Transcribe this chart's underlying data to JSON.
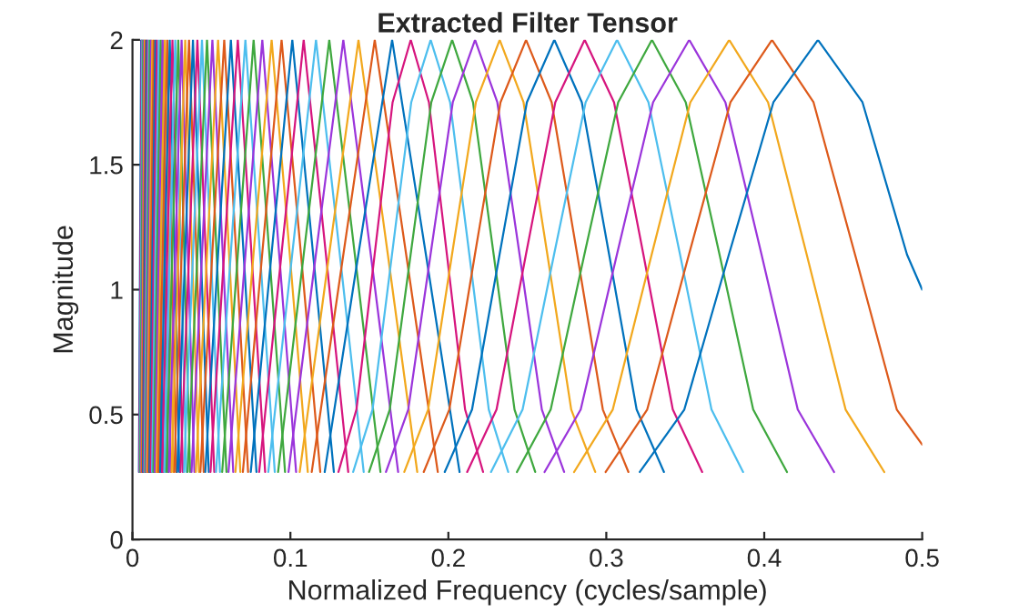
{
  "chart_data": {
    "type": "line",
    "title": "Extracted Filter Tensor",
    "xlabel": "Normalized Frequency (cycles/sample)",
    "ylabel": "Magnitude",
    "xlim": [
      0,
      0.5
    ],
    "xticks": [
      0,
      0.1,
      0.2,
      0.3,
      0.4,
      0.5
    ],
    "ylim": [
      0,
      2
    ],
    "yticks": [
      0,
      0.5,
      1,
      1.5,
      2
    ],
    "grid": false,
    "marker": "none",
    "line_style": "solid",
    "series": [
      {
        "color": "#0072BD",
        "x": [
          0.0041,
          0.0048,
          0.0055,
          0.0062,
          0.0069
        ],
        "values": [
          0.27,
          1.14,
          2,
          1.14,
          0.27
        ]
      },
      {
        "color": "#D6157E",
        "x": [
          0.0044,
          0.0051,
          0.0059,
          0.0067,
          0.0074
        ],
        "values": [
          0.27,
          1.14,
          2,
          1.14,
          0.27
        ]
      },
      {
        "color": "#4DBEEE",
        "x": [
          0.0047,
          0.0055,
          0.0063,
          0.0071,
          0.0079
        ],
        "values": [
          0.27,
          1.14,
          2,
          1.14,
          0.27
        ]
      },
      {
        "color": "#3FA83F",
        "x": [
          0.005,
          0.0059,
          0.0068,
          0.0077,
          0.0086
        ],
        "values": [
          0.27,
          1.14,
          2,
          1.14,
          0.27
        ]
      },
      {
        "color": "#9B35DB",
        "x": [
          0.0054,
          0.0064,
          0.0073,
          0.0082,
          0.0092
        ],
        "values": [
          0.27,
          1.14,
          2,
          1.14,
          0.27
        ]
      },
      {
        "color": "#F2A81D",
        "x": [
          0.0058,
          0.0068,
          0.0078,
          0.0088,
          0.0098
        ],
        "values": [
          0.27,
          1.14,
          2,
          1.14,
          0.27
        ]
      },
      {
        "color": "#DD5A1B",
        "x": [
          0.0061,
          0.0072,
          0.0083,
          0.0094,
          0.0105
        ],
        "values": [
          0.27,
          1.14,
          2,
          1.14,
          0.27
        ]
      },
      {
        "color": "#0072BD",
        "x": [
          0.0066,
          0.0077,
          0.0089,
          0.0101,
          0.0112
        ],
        "values": [
          0.27,
          1.14,
          2,
          1.14,
          0.27
        ]
      },
      {
        "color": "#D6157E",
        "x": [
          0.0071,
          0.0084,
          0.0096,
          0.0108,
          0.0121
        ],
        "values": [
          0.27,
          1.14,
          2,
          1.14,
          0.27
        ]
      },
      {
        "color": "#4DBEEE",
        "x": [
          0.0076,
          0.009,
          0.0103,
          0.0116,
          0.013
        ],
        "values": [
          0.27,
          1.14,
          2,
          1.14,
          0.27
        ]
      },
      {
        "color": "#3FA83F",
        "x": [
          0.0081,
          0.0096,
          0.011,
          0.0124,
          0.0139
        ],
        "values": [
          0.27,
          1.14,
          2,
          1.14,
          0.27
        ]
      },
      {
        "color": "#9B35DB",
        "x": [
          0.0087,
          0.0103,
          0.0118,
          0.0133,
          0.0149
        ],
        "values": [
          0.27,
          1.14,
          2,
          1.14,
          0.27
        ]
      },
      {
        "color": "#F2A81D",
        "x": [
          0.0093,
          0.011,
          0.0126,
          0.0142,
          0.0159
        ],
        "values": [
          0.27,
          1.14,
          2,
          1.14,
          0.27
        ]
      },
      {
        "color": "#DD5A1B",
        "x": [
          0.01,
          0.0117,
          0.0135,
          0.0153,
          0.017
        ],
        "values": [
          0.27,
          1.14,
          2,
          1.14,
          0.27
        ]
      },
      {
        "color": "#0072BD",
        "x": [
          0.0107,
          0.0126,
          0.0145,
          0.0164,
          0.0183
        ],
        "values": [
          0.27,
          1.14,
          2,
          1.14,
          0.27
        ]
      },
      {
        "color": "#D6157E",
        "x": [
          0.0115,
          0.0135,
          0.0155,
          0.0175,
          0.0195
        ],
        "values": [
          0.27,
          1.14,
          2,
          1.14,
          0.27
        ]
      },
      {
        "color": "#4DBEEE",
        "x": [
          0.0124,
          0.0145,
          0.0167,
          0.0189,
          0.021
        ],
        "values": [
          0.27,
          1.14,
          2,
          1.14,
          0.27
        ]
      },
      {
        "color": "#3FA83F",
        "x": [
          0.0132,
          0.0156,
          0.0179,
          0.0202,
          0.0226
        ],
        "values": [
          0.27,
          1.14,
          2,
          1.14,
          0.27
        ]
      },
      {
        "color": "#9B35DB",
        "x": [
          0.0141,
          0.0166,
          0.0191,
          0.0216,
          0.0241
        ],
        "values": [
          0.27,
          1.14,
          2,
          1.14,
          0.27
        ]
      },
      {
        "color": "#F2A81D",
        "x": [
          0.0152,
          0.0178,
          0.0205,
          0.0232,
          0.0258
        ],
        "values": [
          0.27,
          1.14,
          2,
          1.14,
          0.27
        ]
      },
      {
        "color": "#DD5A1B",
        "x": [
          0.0163,
          0.0191,
          0.022,
          0.0249,
          0.0277
        ],
        "values": [
          0.27,
          1.14,
          2,
          1.14,
          0.27
        ]
      },
      {
        "color": "#0072BD",
        "x": [
          0.0175,
          0.0205,
          0.0236,
          0.0267,
          0.0297
        ],
        "values": [
          0.27,
          1.14,
          2,
          1.14,
          0.27
        ]
      },
      {
        "color": "#D6157E",
        "x": [
          0.0187,
          0.022,
          0.0253,
          0.0286,
          0.0319
        ],
        "values": [
          0.27,
          1.14,
          2,
          1.14,
          0.27
        ]
      },
      {
        "color": "#4DBEEE",
        "x": [
          0.0201,
          0.0236,
          0.0271,
          0.0306,
          0.0341
        ],
        "values": [
          0.27,
          1.14,
          2,
          1.14,
          0.27
        ]
      },
      {
        "color": "#3FA83F",
        "x": [
          0.0215,
          0.0252,
          0.029,
          0.0328,
          0.0365
        ],
        "values": [
          0.27,
          1.14,
          2,
          1.14,
          0.27
        ]
      },
      {
        "color": "#9B35DB",
        "x": [
          0.023,
          0.0271,
          0.0311,
          0.0351,
          0.0392
        ],
        "values": [
          0.27,
          1.14,
          2,
          1.14,
          0.27
        ]
      },
      {
        "color": "#F2A81D",
        "x": [
          0.0247,
          0.0291,
          0.0334,
          0.0377,
          0.0421
        ],
        "values": [
          0.27,
          1.14,
          2,
          1.14,
          0.27
        ]
      },
      {
        "color": "#DD5A1B",
        "x": [
          0.0265,
          0.0311,
          0.0358,
          0.0405,
          0.0451
        ],
        "values": [
          0.27,
          1.14,
          2,
          1.14,
          0.27
        ]
      },
      {
        "color": "#0072BD",
        "x": [
          0.0283,
          0.0333,
          0.0383,
          0.0433,
          0.0483
        ],
        "values": [
          0.27,
          1.14,
          2,
          1.14,
          0.27
        ]
      },
      {
        "color": "#D6157E",
        "x": [
          0.0304,
          0.0358,
          0.0411,
          0.0464,
          0.0518
        ],
        "values": [
          0.27,
          1.14,
          2,
          1.14,
          0.27
        ]
      },
      {
        "color": "#4DBEEE",
        "x": [
          0.0326,
          0.0383,
          0.044,
          0.0497,
          0.0554
        ],
        "values": [
          0.27,
          1.14,
          2,
          1.14,
          0.27
        ]
      },
      {
        "color": "#3FA83F",
        "x": [
          0.0349,
          0.0411,
          0.0472,
          0.0533,
          0.0595
        ],
        "values": [
          0.27,
          1.14,
          2,
          1.14,
          0.27
        ]
      },
      {
        "color": "#9B35DB",
        "x": [
          0.0374,
          0.044,
          0.0506,
          0.0572,
          0.0638
        ],
        "values": [
          0.27,
          1.14,
          2,
          1.14,
          0.27
        ]
      },
      {
        "color": "#F2A81D",
        "x": [
          0.0401,
          0.0472,
          0.0542,
          0.0612,
          0.0683
        ],
        "values": [
          0.27,
          1.14,
          2,
          1.14,
          0.27
        ]
      },
      {
        "color": "#DD5A1B",
        "x": [
          0.043,
          0.0505,
          0.0581,
          0.0657,
          0.0732
        ],
        "values": [
          0.27,
          1.14,
          2,
          1.14,
          0.27
        ]
      },
      {
        "color": "#0072BD",
        "x": [
          0.0461,
          0.0542,
          0.0623,
          0.0704,
          0.0785
        ],
        "values": [
          0.27,
          1.14,
          2,
          1.14,
          0.27
        ]
      },
      {
        "color": "#D6157E",
        "x": [
          0.0494,
          0.058,
          0.0667,
          0.0754,
          0.084
        ],
        "values": [
          0.27,
          1.14,
          2,
          1.14,
          0.27
        ]
      },
      {
        "color": "#4DBEEE",
        "x": [
          0.0529,
          0.0622,
          0.0715,
          0.0808,
          0.0901
        ],
        "values": [
          0.27,
          1.14,
          2,
          1.14,
          0.27
        ]
      },
      {
        "color": "#3FA83F",
        "x": [
          0.0568,
          0.0667,
          0.0767,
          0.0867,
          0.0966
        ],
        "values": [
          0.27,
          1.14,
          2,
          1.14,
          0.27
        ]
      },
      {
        "color": "#9B35DB",
        "x": [
          0.0608,
          0.0715,
          0.0822,
          0.0929,
          0.1036
        ],
        "values": [
          0.27,
          1.14,
          2,
          1.14,
          0.27
        ]
      },
      {
        "color": "#F2A81D",
        "x": [
          0.0652,
          0.0766,
          0.0881,
          0.0996,
          0.111
        ],
        "values": [
          0.27,
          1.14,
          2,
          1.14,
          0.27
        ]
      },
      {
        "color": "#DD5A1B",
        "x": [
          0.0699,
          0.0821,
          0.0944,
          0.1067,
          0.1189
        ],
        "values": [
          0.27,
          1.14,
          2,
          1.14,
          0.27
        ]
      },
      {
        "color": "#0072BD",
        "x": [
          0.0749,
          0.088,
          0.1012,
          0.1144,
          0.1275
        ],
        "values": [
          0.27,
          1.14,
          2,
          1.14,
          0.27
        ]
      },
      {
        "color": "#D6157E",
        "x": [
          0.0802,
          0.0943,
          0.1084,
          0.1225,
          0.1366
        ],
        "values": [
          0.27,
          1.14,
          2,
          1.14,
          0.27
        ]
      },
      {
        "color": "#4DBEEE",
        "x": [
          0.086,
          0.1011,
          0.1162,
          0.1313,
          0.1464
        ],
        "values": [
          0.27,
          1.14,
          2,
          1.14,
          0.27
        ]
      },
      {
        "color": "#3FA83F",
        "x": [
          0.0922,
          0.1084,
          0.1246,
          0.1408,
          0.157
        ],
        "values": [
          0.27,
          1.14,
          2,
          1.14,
          0.27
        ]
      },
      {
        "color": "#9B35DB",
        "x": [
          0.0988,
          0.1161,
          0.1335,
          0.1509,
          0.1682
        ],
        "values": [
          0.27,
          1.14,
          2,
          1.14,
          0.27
        ]
      },
      {
        "color": "#F2A81D",
        "x": [
          0.1059,
          0.1245,
          0.1431,
          0.1617,
          0.1803
        ],
        "values": [
          0.27,
          1.14,
          2,
          1.14,
          0.27
        ]
      },
      {
        "color": "#DD5A1B",
        "x": [
          0.1135,
          0.1335,
          0.1534,
          0.1733,
          0.1933
        ],
        "values": [
          0.27,
          1.14,
          2,
          1.14,
          0.27
        ]
      },
      {
        "color": "#0072BD",
        "x": [
          0.1217,
          0.143,
          0.1644,
          0.1858,
          0.2071
        ],
        "values": [
          0.27,
          1.14,
          2,
          1.14,
          0.27
        ]
      },
      {
        "color": "#D6157E",
        "x": [
          0.1304,
          0.1418,
          0.1533,
          0.1647,
          0.1762,
          0.1877,
          0.1991,
          0.2106,
          0.222
        ],
        "values": [
          0.27,
          0.52,
          1.14,
          1.75,
          2,
          1.75,
          1.14,
          0.52,
          0.27
        ]
      },
      {
        "color": "#4DBEEE",
        "x": [
          0.1397,
          0.152,
          0.1643,
          0.1765,
          0.1888,
          0.2011,
          0.2133,
          0.2256,
          0.2379
        ],
        "values": [
          0.27,
          0.52,
          1.14,
          1.75,
          2,
          1.75,
          1.14,
          0.52,
          0.27
        ]
      },
      {
        "color": "#3FA83F",
        "x": [
          0.1498,
          0.1629,
          0.1761,
          0.1892,
          0.2024,
          0.2156,
          0.2287,
          0.2419,
          0.255
        ],
        "values": [
          0.27,
          0.52,
          1.14,
          1.75,
          2,
          1.75,
          1.14,
          0.52,
          0.27
        ]
      },
      {
        "color": "#9B35DB",
        "x": [
          0.1605,
          0.1746,
          0.1887,
          0.2028,
          0.2169,
          0.231,
          0.2451,
          0.2592,
          0.2733
        ],
        "values": [
          0.27,
          0.52,
          1.14,
          1.75,
          2,
          1.75,
          1.14,
          0.52,
          0.27
        ]
      },
      {
        "color": "#F2A81D",
        "x": [
          0.1721,
          0.1872,
          0.2023,
          0.2174,
          0.2325,
          0.2476,
          0.2627,
          0.2778,
          0.293
        ],
        "values": [
          0.27,
          0.52,
          1.14,
          1.75,
          2,
          1.75,
          1.14,
          0.52,
          0.27
        ]
      },
      {
        "color": "#DD5A1B",
        "x": [
          0.1844,
          0.2006,
          0.2168,
          0.233,
          0.2492,
          0.2654,
          0.2816,
          0.2978,
          0.314
        ],
        "values": [
          0.27,
          0.52,
          1.14,
          1.75,
          2,
          1.75,
          1.14,
          0.52,
          0.27
        ]
      },
      {
        "color": "#0072BD",
        "x": [
          0.1977,
          0.215,
          0.2324,
          0.2497,
          0.2671,
          0.2845,
          0.3018,
          0.3192,
          0.3365
        ],
        "values": [
          0.27,
          0.52,
          1.14,
          1.75,
          2,
          1.75,
          1.14,
          0.52,
          0.27
        ]
      },
      {
        "color": "#D6157E",
        "x": [
          0.2119,
          0.2305,
          0.2491,
          0.2677,
          0.2863,
          0.3049,
          0.3235,
          0.3421,
          0.3607
        ],
        "values": [
          0.27,
          0.52,
          1.14,
          1.75,
          2,
          1.75,
          1.14,
          0.52,
          0.27
        ]
      },
      {
        "color": "#4DBEEE",
        "x": [
          0.227,
          0.247,
          0.2669,
          0.2869,
          0.3068,
          0.3267,
          0.3467,
          0.3666,
          0.3866
        ],
        "values": [
          0.27,
          0.52,
          1.14,
          1.75,
          2,
          1.75,
          1.14,
          0.52,
          0.27
        ]
      },
      {
        "color": "#3FA83F",
        "x": [
          0.2434,
          0.2648,
          0.2861,
          0.3075,
          0.3289,
          0.3503,
          0.3717,
          0.393,
          0.4144
        ],
        "values": [
          0.27,
          0.52,
          1.14,
          1.75,
          2,
          1.75,
          1.14,
          0.52,
          0.27
        ]
      },
      {
        "color": "#9B35DB",
        "x": [
          0.2609,
          0.2838,
          0.3067,
          0.3296,
          0.3525,
          0.3754,
          0.3983,
          0.4212,
          0.4442
        ],
        "values": [
          0.27,
          0.52,
          1.14,
          1.75,
          2,
          1.75,
          1.14,
          0.52,
          0.27
        ]
      },
      {
        "color": "#F2A81D",
        "x": [
          0.2796,
          0.3041,
          0.3287,
          0.3532,
          0.3778,
          0.4024,
          0.4269,
          0.4515,
          0.476
        ],
        "values": [
          0.27,
          0.52,
          1.14,
          1.75,
          2,
          1.75,
          1.14,
          0.52,
          0.27
        ]
      },
      {
        "color": "#DD5A1B",
        "x": [
          0.2996,
          0.3259,
          0.3523,
          0.3786,
          0.4049,
          0.4312,
          0.4575,
          0.4839,
          0.5
        ],
        "values": [
          0.27,
          0.52,
          1.14,
          1.75,
          2,
          1.75,
          1.14,
          0.52,
          0.38
        ]
      },
      {
        "color": "#0072BD",
        "x": [
          0.3212,
          0.3494,
          0.3776,
          0.4058,
          0.434,
          0.4622,
          0.4904,
          0.5
        ],
        "values": [
          0.27,
          0.52,
          1.14,
          1.75,
          2,
          1.75,
          1.14,
          1.0
        ]
      }
    ]
  }
}
